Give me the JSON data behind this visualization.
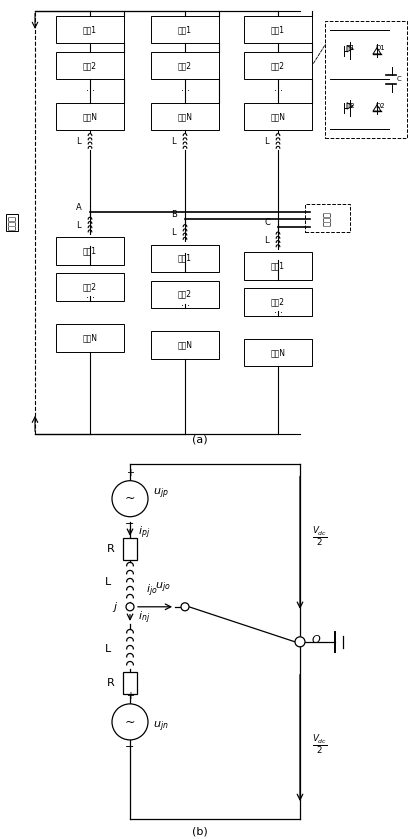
{
  "fig_width": 4.11,
  "fig_height": 8.39,
  "dpi": 100,
  "bg_color": "#ffffff",
  "line_color": "#000000",
  "label_a": "(a)",
  "label_b": "(b)",
  "dc_side_label": "直流侧",
  "ac_side_label": "交流侧",
  "module_label_1": "模块1",
  "module_label_2": "模块2",
  "module_label_n": "模块N",
  "inductor_label": "L",
  "resistor_label": "R",
  "T1_label": "T1",
  "T2_label": "T2",
  "D1_label": "D1",
  "D2_label": "D2",
  "C_label": "C",
  "O_label": "O",
  "ujp_label": "u_{jp}",
  "ujn_label": "u_{jn}",
  "ipj_label": "i_{pj}",
  "ijo_label": "i_{jo}",
  "inj_label": "i_{nj}",
  "ujo_label": "u_{jo}",
  "j_label": "j",
  "A_label": "A",
  "B_label": "B",
  "C_label2": "C"
}
